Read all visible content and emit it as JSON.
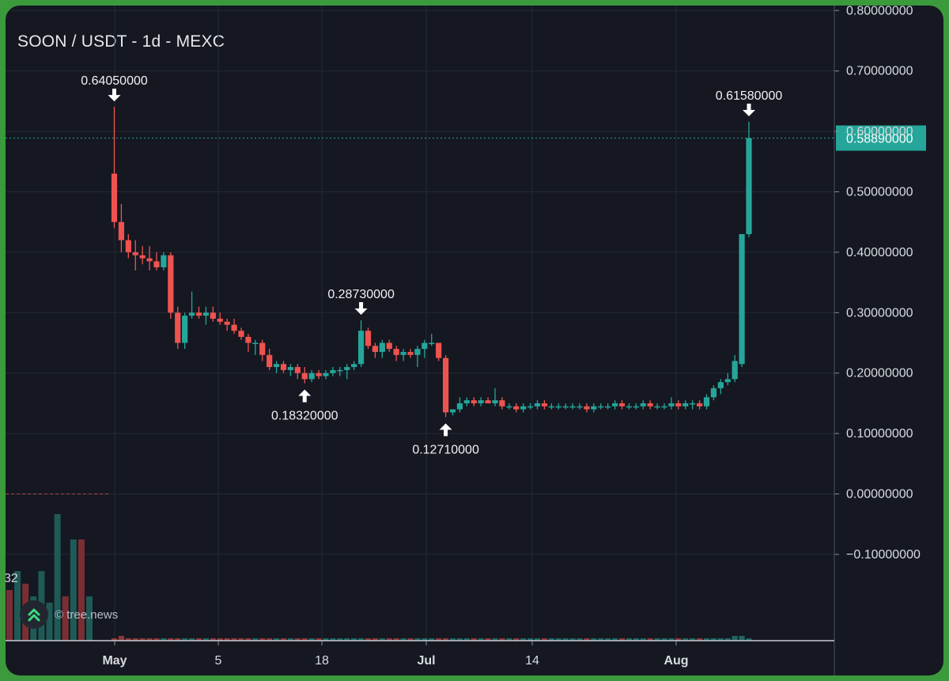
{
  "chart_data": {
    "type": "candlestick",
    "title": "SOON / USDT - 1d - MEXC",
    "y_axis": {
      "ticks": [
        "0.80000000",
        "0.70000000",
        "0.60000000",
        "0.50000000",
        "0.40000000",
        "0.30000000",
        "0.20000000",
        "0.10000000",
        "0.00000000",
        "−0.10000000"
      ],
      "range": [
        -0.16,
        0.88
      ],
      "position": "right",
      "scale": "linear"
    },
    "x_axis": {
      "ticks": [
        {
          "label": "May",
          "bold": true
        },
        {
          "label": "5",
          "bold": false
        },
        {
          "label": "18",
          "bold": false
        },
        {
          "label": "Jul",
          "bold": true
        },
        {
          "label": "14",
          "bold": false
        },
        {
          "label": "Aug",
          "bold": true
        }
      ]
    },
    "last_price": {
      "label": "0.58890000",
      "value": 0.5889,
      "color": "#26a69a"
    },
    "annotations": [
      {
        "label": "0.64050000",
        "value": 0.6405,
        "type": "high"
      },
      {
        "label": "0.18320000",
        "value": 0.1832,
        "type": "low"
      },
      {
        "label": "0.28730000",
        "value": 0.2873,
        "type": "high"
      },
      {
        "label": "0.12710000",
        "value": 0.1271,
        "type": "low"
      },
      {
        "label": "0.61580000",
        "value": 0.6158,
        "type": "high"
      }
    ],
    "up_color": "#26a69a",
    "down_color": "#ef5350",
    "grid": true,
    "candles": [
      [
        0.53,
        0.6405,
        0.44,
        0.45
      ],
      [
        0.45,
        0.48,
        0.4,
        0.42
      ],
      [
        0.42,
        0.43,
        0.39,
        0.4
      ],
      [
        0.4,
        0.42,
        0.37,
        0.395
      ],
      [
        0.395,
        0.41,
        0.38,
        0.39
      ],
      [
        0.39,
        0.41,
        0.37,
        0.385
      ],
      [
        0.385,
        0.4,
        0.37,
        0.375
      ],
      [
        0.375,
        0.4,
        0.37,
        0.395
      ],
      [
        0.395,
        0.4,
        0.29,
        0.3
      ],
      [
        0.3,
        0.31,
        0.24,
        0.25
      ],
      [
        0.25,
        0.3,
        0.24,
        0.295
      ],
      [
        0.295,
        0.335,
        0.29,
        0.3
      ],
      [
        0.3,
        0.31,
        0.29,
        0.295
      ],
      [
        0.295,
        0.31,
        0.28,
        0.3
      ],
      [
        0.3,
        0.31,
        0.285,
        0.29
      ],
      [
        0.29,
        0.3,
        0.28,
        0.285
      ],
      [
        0.285,
        0.29,
        0.27,
        0.28
      ],
      [
        0.28,
        0.29,
        0.265,
        0.27
      ],
      [
        0.27,
        0.275,
        0.255,
        0.26
      ],
      [
        0.26,
        0.265,
        0.235,
        0.25
      ],
      [
        0.25,
        0.255,
        0.23,
        0.25
      ],
      [
        0.25,
        0.255,
        0.22,
        0.23
      ],
      [
        0.23,
        0.24,
        0.205,
        0.21
      ],
      [
        0.21,
        0.22,
        0.2,
        0.215
      ],
      [
        0.215,
        0.22,
        0.2,
        0.205
      ],
      [
        0.205,
        0.215,
        0.195,
        0.21
      ],
      [
        0.21,
        0.215,
        0.19,
        0.2
      ],
      [
        0.2,
        0.21,
        0.1832,
        0.19
      ],
      [
        0.19,
        0.205,
        0.185,
        0.2
      ],
      [
        0.2,
        0.205,
        0.19,
        0.195
      ],
      [
        0.195,
        0.205,
        0.19,
        0.2
      ],
      [
        0.2,
        0.21,
        0.195,
        0.205
      ],
      [
        0.205,
        0.21,
        0.195,
        0.205
      ],
      [
        0.205,
        0.215,
        0.19,
        0.21
      ],
      [
        0.21,
        0.22,
        0.205,
        0.215
      ],
      [
        0.215,
        0.2873,
        0.21,
        0.27
      ],
      [
        0.27,
        0.275,
        0.24,
        0.245
      ],
      [
        0.245,
        0.25,
        0.225,
        0.235
      ],
      [
        0.235,
        0.255,
        0.225,
        0.25
      ],
      [
        0.25,
        0.255,
        0.235,
        0.24
      ],
      [
        0.24,
        0.245,
        0.22,
        0.23
      ],
      [
        0.23,
        0.24,
        0.22,
        0.235
      ],
      [
        0.235,
        0.24,
        0.225,
        0.23
      ],
      [
        0.23,
        0.245,
        0.21,
        0.24
      ],
      [
        0.24,
        0.255,
        0.225,
        0.25
      ],
      [
        0.25,
        0.265,
        0.245,
        0.25
      ],
      [
        0.25,
        0.25,
        0.22,
        0.225
      ],
      [
        0.225,
        0.23,
        0.1271,
        0.135
      ],
      [
        0.135,
        0.14,
        0.13,
        0.14
      ],
      [
        0.14,
        0.16,
        0.135,
        0.15
      ],
      [
        0.15,
        0.16,
        0.145,
        0.155
      ],
      [
        0.155,
        0.16,
        0.145,
        0.15
      ],
      [
        0.15,
        0.16,
        0.145,
        0.155
      ],
      [
        0.155,
        0.16,
        0.15,
        0.15
      ],
      [
        0.15,
        0.175,
        0.145,
        0.155
      ],
      [
        0.155,
        0.16,
        0.14,
        0.145
      ],
      [
        0.145,
        0.15,
        0.14,
        0.145
      ],
      [
        0.145,
        0.15,
        0.135,
        0.14
      ],
      [
        0.14,
        0.15,
        0.135,
        0.145
      ],
      [
        0.145,
        0.15,
        0.14,
        0.145
      ],
      [
        0.145,
        0.155,
        0.14,
        0.15
      ],
      [
        0.15,
        0.155,
        0.14,
        0.145
      ],
      [
        0.145,
        0.15,
        0.14,
        0.145
      ],
      [
        0.145,
        0.15,
        0.14,
        0.145
      ],
      [
        0.145,
        0.15,
        0.14,
        0.145
      ],
      [
        0.145,
        0.15,
        0.14,
        0.145
      ],
      [
        0.145,
        0.15,
        0.14,
        0.145
      ],
      [
        0.145,
        0.15,
        0.135,
        0.14
      ],
      [
        0.14,
        0.15,
        0.135,
        0.145
      ],
      [
        0.145,
        0.15,
        0.14,
        0.145
      ],
      [
        0.145,
        0.15,
        0.14,
        0.145
      ],
      [
        0.145,
        0.155,
        0.14,
        0.15
      ],
      [
        0.15,
        0.155,
        0.14,
        0.145
      ],
      [
        0.145,
        0.15,
        0.14,
        0.145
      ],
      [
        0.145,
        0.15,
        0.14,
        0.145
      ],
      [
        0.145,
        0.155,
        0.14,
        0.15
      ],
      [
        0.15,
        0.155,
        0.14,
        0.145
      ],
      [
        0.145,
        0.15,
        0.14,
        0.145
      ],
      [
        0.145,
        0.15,
        0.14,
        0.145
      ],
      [
        0.145,
        0.16,
        0.14,
        0.15
      ],
      [
        0.15,
        0.155,
        0.14,
        0.145
      ],
      [
        0.145,
        0.155,
        0.14,
        0.15
      ],
      [
        0.15,
        0.155,
        0.14,
        0.15
      ],
      [
        0.15,
        0.155,
        0.14,
        0.145
      ],
      [
        0.145,
        0.165,
        0.14,
        0.16
      ],
      [
        0.16,
        0.18,
        0.155,
        0.175
      ],
      [
        0.175,
        0.19,
        0.165,
        0.185
      ],
      [
        0.185,
        0.2,
        0.18,
        0.19
      ],
      [
        0.19,
        0.23,
        0.185,
        0.22
      ],
      [
        0.215,
        0.43,
        0.21,
        0.43
      ],
      [
        0.43,
        0.6158,
        0.425,
        0.5889
      ]
    ],
    "volume": {
      "visible_label": "32",
      "left_bars": [
        {
          "value": 0.4,
          "color": "#7a2e34"
        },
        {
          "value": 0.55,
          "color": "#1f5a57"
        },
        {
          "value": 0.45,
          "color": "#7a2e34"
        },
        {
          "value": 0.35,
          "color": "#1f5a57"
        },
        {
          "value": 0.55,
          "color": "#1f5a57"
        },
        {
          "value": 0.3,
          "color": "#1f5a57"
        },
        {
          "value": 1.0,
          "color": "#1f5a57"
        },
        {
          "value": 0.35,
          "color": "#7a2e34"
        },
        {
          "value": 0.8,
          "color": "#1f5a57"
        },
        {
          "value": 0.8,
          "color": "#7a2e34"
        },
        {
          "value": 0.35,
          "color": "#1f5a57"
        }
      ]
    }
  },
  "watermark": {
    "text": "© tree.news",
    "icon": "double-chevron-up-icon"
  }
}
